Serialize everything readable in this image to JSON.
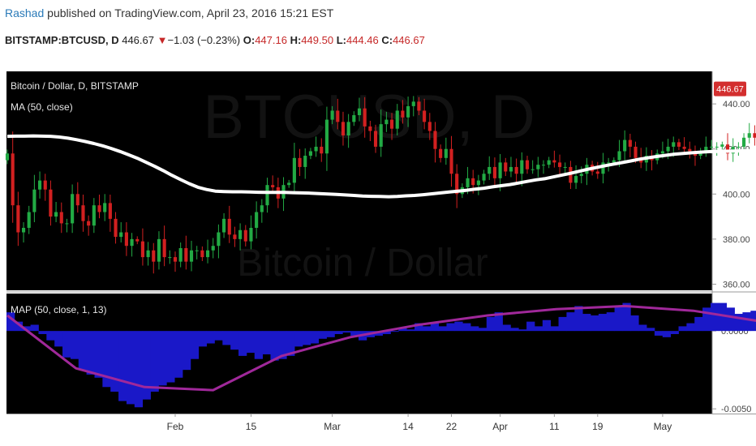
{
  "header": {
    "author": "Rashad",
    "published_text": "published on TradingView.com, April 23, 2016 15:21 EST",
    "symbol": "BITSTAMP:BTCUSD, D",
    "last": "446.67",
    "change_arrow": "▼",
    "change": "−1.03 (−0.23%)",
    "open_label": "O:",
    "open": "447.16",
    "high_label": "H:",
    "high": "449.50",
    "low_label": "L:",
    "low": "444.46",
    "close_label": "C:",
    "close": "446.67"
  },
  "watermark": {
    "symbol": "BTCUSD, D",
    "name": "Bitcoin / Dollar"
  },
  "legend": {
    "main": "Bitcoin / Dollar, D, BITSTAMP",
    "ma": "MA (50, close)",
    "map": "MAP (50, close, 1, 13)"
  },
  "colors": {
    "background": "#000000",
    "up": "#22aa44",
    "down": "#d22020",
    "ma_line": "#ffffff",
    "histogram": "#1a18c8",
    "map_line": "#a0289a",
    "last_price_tag": "#d32f2f"
  },
  "chart_data": {
    "type": "candlestick",
    "price_axis": {
      "ticks": [
        "440.00",
        "420.00",
        "400.00",
        "380.00",
        "360.00"
      ],
      "tick_values": [
        440,
        420,
        400,
        380,
        360
      ],
      "range": [
        358,
        453
      ],
      "last_price_label": "446.67",
      "last_price": 446.67
    },
    "indicator_axis": {
      "ticks": [
        "0.0000",
        "-0.0050"
      ],
      "tick_values": [
        0,
        -0.005
      ],
      "range": [
        -0.0052,
        0.0023
      ]
    },
    "time_axis": {
      "labels": [
        "Feb",
        "15",
        "Mar",
        "14",
        "22",
        "Apr",
        "11",
        "19",
        "May"
      ],
      "label_day_index": [
        31,
        45,
        60,
        74,
        82,
        91,
        101,
        109,
        121
      ]
    },
    "start_date": "2016-01-01",
    "end_date": "2016-04-23",
    "ohlc_closes": [
      418,
      395,
      383,
      385,
      392,
      402,
      406,
      402,
      390,
      392,
      387,
      387,
      400,
      395,
      388,
      386,
      395,
      392,
      396,
      389,
      381,
      383,
      377,
      380,
      379,
      372,
      375,
      370,
      380,
      372,
      372,
      370,
      376,
      370,
      375,
      375,
      372,
      375,
      377,
      383,
      389,
      382,
      380,
      384,
      379,
      385,
      392,
      395,
      404,
      403,
      398,
      404,
      405,
      416,
      412,
      417,
      419,
      421,
      418,
      433,
      437,
      432,
      426,
      432,
      435,
      438,
      430,
      428,
      421,
      431,
      433,
      429,
      437,
      434,
      439,
      441,
      437,
      432,
      428,
      420,
      416,
      420,
      409,
      400,
      403,
      407,
      404,
      406,
      409,
      412,
      407,
      414,
      410,
      412,
      409,
      415,
      411,
      411,
      413,
      413,
      415,
      414,
      412,
      412,
      405,
      408,
      409,
      413,
      410,
      409,
      414,
      414,
      415,
      419,
      424,
      421,
      416,
      414,
      417,
      415,
      418,
      419,
      421,
      423,
      421,
      420,
      419,
      417,
      419,
      421,
      421,
      421,
      422,
      418,
      421,
      421,
      425,
      427,
      425,
      426,
      425,
      427,
      430,
      428,
      430,
      428,
      433,
      435,
      437,
      445,
      451,
      449,
      447
    ],
    "ma_50": [
      425.6,
      425.7,
      425.7,
      425.8,
      425.7,
      425.6,
      425.3,
      424.8,
      424.1,
      423.3,
      422.4,
      421.4,
      420.2,
      418.9,
      417.4,
      415.9,
      414.1,
      412.3,
      410.4,
      408.3,
      406.4,
      404.6,
      403.0,
      402.0,
      401.3,
      401.1,
      401.0,
      401.0,
      400.9,
      400.8,
      400.7,
      400.7,
      400.7,
      400.6,
      400.5,
      400.4,
      400.2,
      400.0,
      399.8,
      399.6,
      399.4,
      399.1,
      399.0,
      398.9,
      398.8,
      398.9,
      399.2,
      399.4,
      399.7,
      400.1,
      400.5,
      400.9,
      401.3,
      401.7,
      402.2,
      402.6,
      403.2,
      403.7,
      404.2,
      404.9,
      405.6,
      406.3,
      406.8,
      407.6,
      408.4,
      409.2,
      410.1,
      411.0,
      411.8,
      412.6,
      413.3,
      414.0,
      414.7,
      415.5,
      416.1,
      416.7,
      417.2,
      417.7,
      418.0,
      418.3,
      418.6,
      418.8,
      418.9,
      419.0,
      419.1,
      419.2,
      419.3,
      419.4,
      419.5,
      419.6,
      419.7,
      419.8,
      420.0,
      420.3,
      420.6,
      421.0
    ],
    "map_histogram": [
      0.0012,
      0.0006,
      0.0003,
      0.0004,
      -0.0002,
      -0.0006,
      -0.001,
      -0.0017,
      -0.0018,
      -0.0025,
      -0.0028,
      -0.003,
      -0.0036,
      -0.0039,
      -0.0045,
      -0.0047,
      -0.0049,
      -0.0044,
      -0.0039,
      -0.0035,
      -0.0033,
      -0.003,
      -0.0025,
      -0.0018,
      -0.001,
      -0.0008,
      -0.0006,
      -0.0009,
      -0.0012,
      -0.0016,
      -0.0014,
      -0.0018,
      -0.0015,
      -0.0019,
      -0.0018,
      -0.0016,
      -0.001,
      -0.0009,
      -0.0008,
      -0.0005,
      -0.0004,
      -0.0002,
      -0.0001,
      -0.0003,
      -0.0006,
      -0.0004,
      -0.0003,
      -0.0002,
      0.0,
      0.0002,
      0.0001,
      0.0005,
      0.0003,
      0.0005,
      0.0003,
      0.0005,
      0.0006,
      0.0005,
      0.0003,
      0.0002,
      0.0009,
      0.0012,
      0.0004,
      0.0002,
      0.0001,
      0.0006,
      0.0003,
      0.0007,
      0.0003,
      0.0009,
      0.0012,
      0.0016,
      0.0011,
      0.001,
      0.0011,
      0.0012,
      0.0016,
      0.0018,
      0.001,
      0.0004,
      0.0002,
      -0.0003,
      -0.0004,
      -0.0002,
      0.0003,
      0.0005,
      0.0009,
      0.0015,
      0.0018,
      0.0018,
      0.0015,
      0.0011,
      0.0012,
      0.0013,
      0.0009,
      0.0008,
      0.0003,
      0.0005,
      0.0004,
      0.0007,
      0.0003,
      0.0006,
      0.0002
    ],
    "map_line": [
      0.001,
      -0.0024,
      -0.0036,
      -0.0038,
      -0.0016,
      -0.0004,
      0.0004,
      0.001,
      0.0014,
      0.0016,
      0.0013,
      0.0006,
      0.0002
    ]
  }
}
